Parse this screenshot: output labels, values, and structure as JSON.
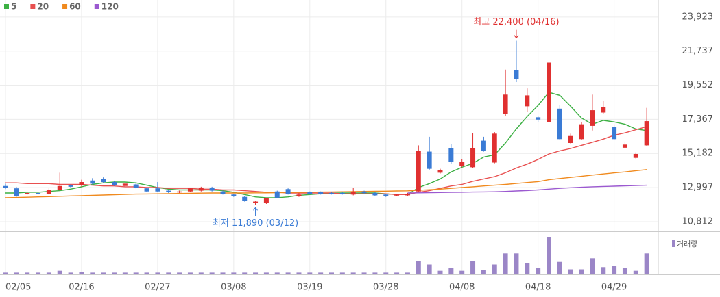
{
  "chart_data": {
    "type": "candlestick",
    "categories": [
      "02/05",
      null,
      null,
      null,
      null,
      null,
      null,
      "02/16",
      null,
      null,
      null,
      null,
      null,
      null,
      "02/27",
      null,
      null,
      null,
      null,
      null,
      null,
      "03/08",
      null,
      null,
      null,
      null,
      null,
      null,
      "03/19",
      null,
      null,
      null,
      null,
      null,
      null,
      "03/28",
      null,
      null,
      null,
      null,
      null,
      null,
      "04/08",
      null,
      null,
      null,
      null,
      null,
      null,
      "04/18",
      null,
      null,
      null,
      null,
      null,
      null,
      "04/29",
      null,
      null,
      null
    ],
    "open": [
      13100,
      12950,
      12600,
      12650,
      12600,
      12850,
      13150,
      13150,
      13450,
      13550,
      13350,
      13100,
      13200,
      12950,
      12950,
      12800,
      12700,
      12750,
      12800,
      13000,
      12750,
      12550,
      12400,
      12000,
      12000,
      12750,
      12900,
      12450,
      12700,
      12700,
      12650,
      12650,
      12550,
      12750,
      12650,
      12550,
      12500,
      12500,
      12750,
      15300,
      13950,
      15500,
      14400,
      14300,
      16000,
      14600,
      17700,
      20500,
      18200,
      17500,
      17200,
      18050,
      15850,
      16100,
      16950,
      17800,
      16900,
      15550,
      14900,
      15700
    ],
    "high": [
      13250,
      13050,
      12700,
      12700,
      12950,
      13950,
      13200,
      13500,
      13600,
      13650,
      13400,
      13300,
      13250,
      13000,
      13350,
      12850,
      12800,
      13000,
      13050,
      13050,
      12800,
      12600,
      12450,
      12150,
      12350,
      12800,
      12950,
      12650,
      12750,
      12750,
      12700,
      12700,
      13000,
      12800,
      12700,
      12600,
      12600,
      12650,
      15700,
      16250,
      14200,
      15800,
      14800,
      16500,
      16250,
      16550,
      20550,
      22400,
      19350,
      17600,
      22300,
      18300,
      16450,
      17200,
      18950,
      18550,
      17050,
      15950,
      15250,
      18100
    ],
    "low": [
      12900,
      12400,
      12550,
      12550,
      12550,
      12800,
      12950,
      13050,
      13200,
      13300,
      13100,
      13050,
      12950,
      12700,
      12700,
      12650,
      12650,
      12700,
      12750,
      12750,
      12550,
      12400,
      12100,
      11890,
      11950,
      12300,
      12550,
      12400,
      12550,
      12550,
      12550,
      12550,
      12500,
      12600,
      12450,
      12400,
      12450,
      12450,
      12700,
      14150,
      13900,
      14500,
      14300,
      14250,
      15300,
      14550,
      17600,
      19750,
      17850,
      17200,
      17050,
      16050,
      15800,
      16050,
      16650,
      17700,
      16050,
      15500,
      14850,
      15650
    ],
    "close": [
      13000,
      12450,
      12650,
      12600,
      12850,
      13100,
      13050,
      13350,
      13250,
      13350,
      13150,
      13250,
      13000,
      12750,
      12750,
      12700,
      12750,
      12950,
      13000,
      12800,
      12600,
      12450,
      12150,
      12100,
      12300,
      12350,
      12600,
      12550,
      12600,
      12600,
      12600,
      12600,
      12700,
      12650,
      12500,
      12450,
      12550,
      12600,
      15350,
      14200,
      14100,
      14650,
      14650,
      15500,
      15350,
      16450,
      18950,
      19950,
      18900,
      17350,
      21000,
      16100,
      16300,
      17050,
      17950,
      18150,
      16100,
      15750,
      15150,
      17250
    ],
    "up_color": "#e03030",
    "down_color": "#3a7bd5",
    "series": [
      {
        "name": "5",
        "color": "#3cb043",
        "values": [
          12650,
          12650,
          12700,
          12700,
          12750,
          12800,
          12900,
          13050,
          13200,
          13300,
          13350,
          13350,
          13300,
          13150,
          13000,
          12900,
          12850,
          12850,
          12850,
          12850,
          12800,
          12700,
          12550,
          12400,
          12350,
          12350,
          12400,
          12500,
          12550,
          12600,
          12650,
          12650,
          12650,
          12650,
          12650,
          12600,
          12550,
          12550,
          13000,
          13250,
          13550,
          14000,
          14300,
          14550,
          14950,
          15100,
          15850,
          16750,
          17550,
          18250,
          19100,
          18900,
          18200,
          17450,
          17050,
          17300,
          17200,
          17050,
          16750,
          16650
        ]
      },
      {
        "name": "20",
        "color": "#e85050",
        "values": [
          13300,
          13300,
          13250,
          13250,
          13250,
          13200,
          13200,
          13200,
          13150,
          13100,
          13100,
          13050,
          13050,
          13000,
          13000,
          12950,
          12950,
          12950,
          12900,
          12900,
          12850,
          12850,
          12800,
          12750,
          12700,
          12700,
          12650,
          12650,
          12650,
          12650,
          12650,
          12600,
          12600,
          12600,
          12600,
          12600,
          12550,
          12550,
          12700,
          12800,
          12950,
          13100,
          13200,
          13400,
          13550,
          13700,
          13950,
          14250,
          14500,
          14800,
          15150,
          15350,
          15500,
          15700,
          15900,
          16100,
          16350,
          16500,
          16700,
          16900
        ]
      },
      {
        "name": "60",
        "color": "#f08a1e",
        "values": [
          12350,
          12360,
          12380,
          12400,
          12420,
          12440,
          12460,
          12480,
          12500,
          12520,
          12540,
          12560,
          12580,
          12590,
          12600,
          12610,
          12620,
          12630,
          12640,
          12650,
          12650,
          12650,
          12650,
          12660,
          12660,
          12670,
          12680,
          12690,
          12700,
          12710,
          12720,
          12730,
          12740,
          12750,
          12760,
          12770,
          12780,
          12790,
          12820,
          12860,
          12900,
          12950,
          13000,
          13050,
          13100,
          13150,
          13200,
          13260,
          13320,
          13380,
          13500,
          13580,
          13650,
          13720,
          13800,
          13870,
          13940,
          14000,
          14080,
          14150
        ]
      },
      {
        "name": "120",
        "color": "#9b59d0",
        "values": [
          null,
          null,
          null,
          null,
          null,
          null,
          null,
          null,
          null,
          null,
          null,
          null,
          null,
          null,
          null,
          null,
          null,
          null,
          null,
          null,
          null,
          null,
          null,
          null,
          null,
          null,
          null,
          null,
          null,
          null,
          null,
          null,
          null,
          null,
          null,
          null,
          null,
          12650,
          12660,
          12670,
          12680,
          12690,
          12700,
          12710,
          12720,
          12730,
          12750,
          12780,
          12810,
          12850,
          12900,
          12950,
          12990,
          13020,
          13050,
          13070,
          13090,
          13110,
          13130,
          13150
        ]
      }
    ],
    "ylim": [
      10240,
      24660
    ],
    "yticks": [
      {
        "value": 23923,
        "label": "23,923"
      },
      {
        "value": 21737,
        "label": "21,737"
      },
      {
        "value": 19552,
        "label": "19,552"
      },
      {
        "value": 17367,
        "label": "17,367"
      },
      {
        "value": 15182,
        "label": "15,182"
      },
      {
        "value": 12997,
        "label": "12,997"
      },
      {
        "value": 10812,
        "label": "10,812"
      }
    ],
    "grid": true,
    "annotations": [
      {
        "text": "최고 22,400 (04/16)",
        "value": 22400
      },
      {
        "text": "최저 11,890 (03/12)",
        "value": 11890
      }
    ],
    "volume": {
      "name": "거래량",
      "color": "#9b86c7",
      "ylim": [
        0,
        100
      ],
      "values": [
        3,
        3,
        3,
        3,
        3,
        8,
        3,
        5,
        3,
        3,
        3,
        3,
        3,
        3,
        3,
        3,
        3,
        3,
        3,
        3,
        3,
        3,
        3,
        3,
        3,
        3,
        3,
        3,
        3,
        3,
        3,
        3,
        3,
        3,
        3,
        3,
        3,
        3,
        35,
        25,
        8,
        15,
        8,
        35,
        10,
        25,
        55,
        55,
        28,
        15,
        100,
        32,
        12,
        12,
        42,
        18,
        22,
        15,
        8,
        55
      ]
    }
  }
}
